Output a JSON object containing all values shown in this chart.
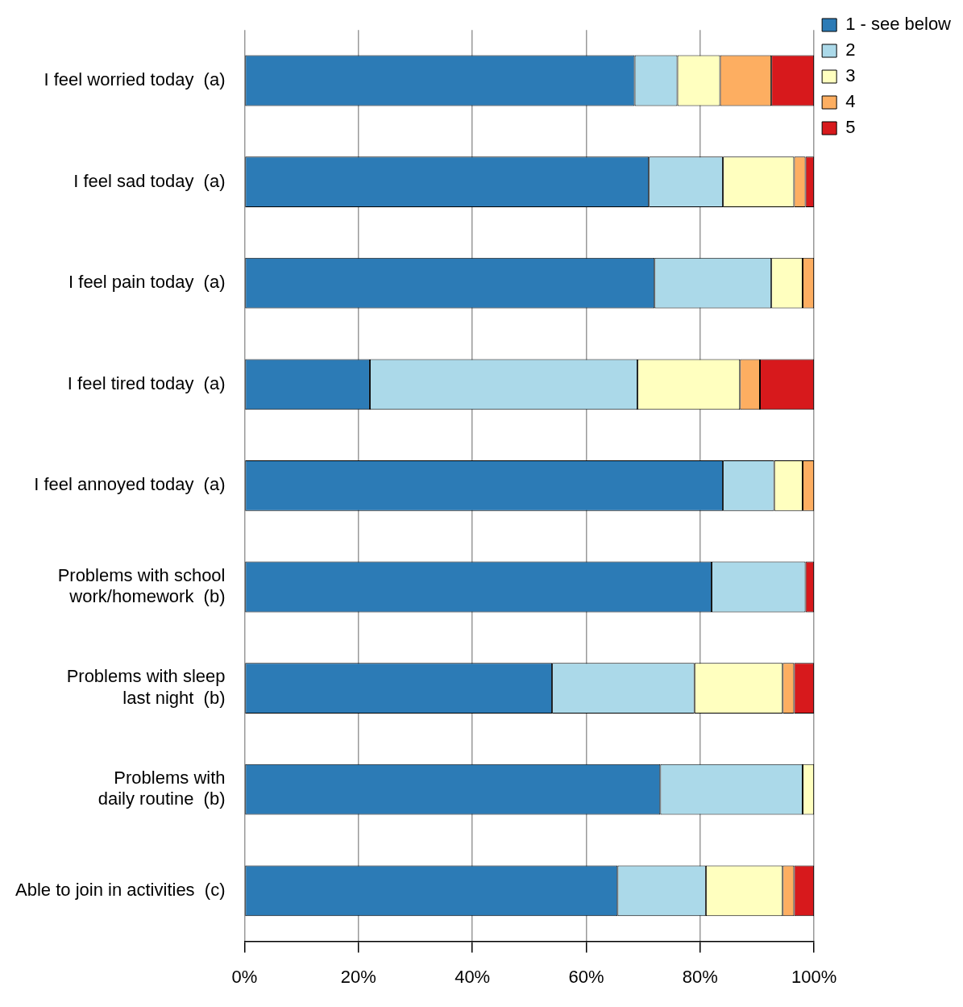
{
  "chart_data": {
    "type": "bar",
    "orientation": "horizontal",
    "stacked": true,
    "categories": [
      "I feel worried today  (a)",
      "I feel sad today  (a)",
      "I feel pain today  (a)",
      "I feel tired today  (a)",
      "I feel annoyed today  (a)",
      "Problems with school\nwork/homework  (b)",
      "Problems with sleep\nlast night  (b)",
      "Problems with\ndaily routine  (b)",
      "Able to join in activities  (c)"
    ],
    "series": [
      {
        "name": "1 - see below",
        "color": "#2c7bb6",
        "values": [
          68.5,
          71,
          72,
          22,
          84,
          82,
          54,
          73,
          65.5
        ]
      },
      {
        "name": "2",
        "color": "#abd9e9",
        "values": [
          7.5,
          13,
          20.5,
          47,
          9,
          16.5,
          25,
          25,
          15.5
        ]
      },
      {
        "name": "3",
        "color": "#ffffbf",
        "values": [
          7.5,
          12.5,
          5.5,
          18,
          5,
          0,
          15.5,
          2,
          13.5
        ]
      },
      {
        "name": "4",
        "color": "#fdae61",
        "values": [
          9,
          2,
          2,
          3.5,
          2,
          0,
          2,
          0,
          2
        ]
      },
      {
        "name": "5",
        "color": "#d7191c",
        "values": [
          7.5,
          1.5,
          0,
          9.5,
          0,
          1.5,
          3.5,
          0,
          3.5
        ]
      }
    ],
    "xlim": [
      0,
      100
    ],
    "xticks": [
      {
        "value": 0,
        "label": "0%"
      },
      {
        "value": 20,
        "label": "20%"
      },
      {
        "value": 40,
        "label": "40%"
      },
      {
        "value": 60,
        "label": "60%"
      },
      {
        "value": 80,
        "label": "80%"
      },
      {
        "value": 100,
        "label": "100%"
      }
    ],
    "grid": "x",
    "legend": "top right"
  }
}
